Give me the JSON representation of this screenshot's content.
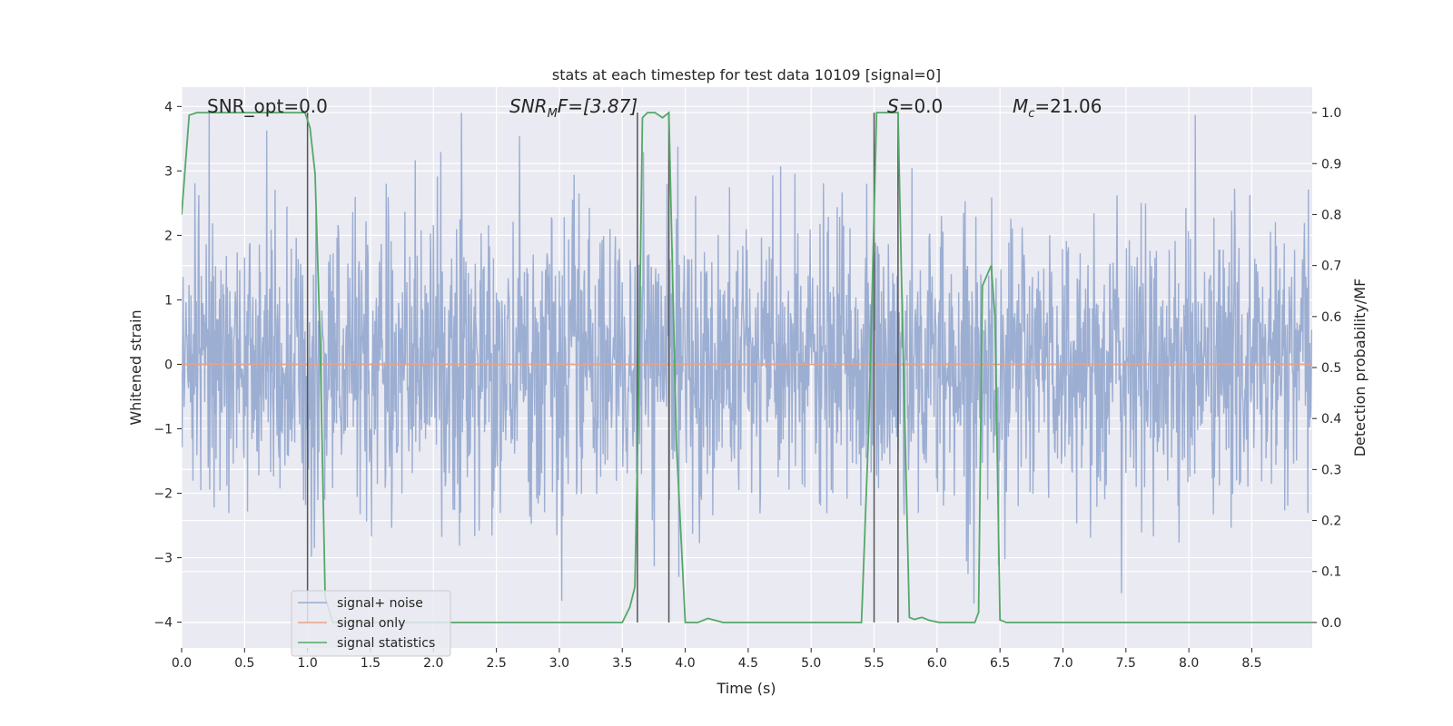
{
  "chart_data": {
    "type": "line",
    "title": "stats at each timestep for test data 10109 [signal=0]",
    "xlabel": "Time (s)",
    "ylabel_left": "Whitened strain",
    "ylabel_right": "Detection probability/MF",
    "xlim": [
      0.0,
      8.98
    ],
    "ylim_left": [
      -4.4,
      4.3
    ],
    "ylim_right": [
      -0.05,
      1.05
    ],
    "x_ticks": [
      "0.0",
      "0.5",
      "1.0",
      "1.5",
      "2.0",
      "2.5",
      "3.0",
      "3.5",
      "4.0",
      "4.5",
      "5.0",
      "5.5",
      "6.0",
      "6.5",
      "7.0",
      "7.5",
      "8.0",
      "8.5"
    ],
    "y_ticks_left": [
      "4",
      "3",
      "2",
      "1",
      "0",
      "−1",
      "−2",
      "−3",
      "−4"
    ],
    "y_ticks_right": [
      "1.0",
      "0.9",
      "0.8",
      "0.7",
      "0.6",
      "0.5",
      "0.4",
      "0.3",
      "0.2",
      "0.1",
      "0.0"
    ],
    "grid": true,
    "legend_position": "lower-left",
    "annotations": {
      "snr_opt": "SNR_opt=0.0",
      "snr_mf_main": "SNR",
      "snr_mf_sub": "M",
      "snr_mf_rest": "F=[3.87]",
      "s_label": "S",
      "s_rest": "=0.0",
      "mc_main": "M",
      "mc_sub": "c",
      "mc_rest": "=21.06"
    },
    "vertical_lines": [
      1.0,
      3.62,
      3.87,
      5.5,
      5.69
    ],
    "noise_series": {
      "name": "signal+ noise",
      "color": "#98abd0",
      "sample_rate_hz": 256,
      "amplitude_sd": 1.0,
      "peak_min": -4.0,
      "peak_max": 3.9
    },
    "signal_only": {
      "name": "signal only",
      "color": "#e5a38a",
      "value": 0.0
    },
    "statistics": {
      "name": "signal statistics",
      "color": "#55a868",
      "x": [
        0.0,
        0.06,
        0.12,
        0.5,
        0.98,
        1.02,
        1.06,
        1.1,
        1.14,
        1.2,
        1.3,
        3.5,
        3.56,
        3.6,
        3.63,
        3.66,
        3.7,
        3.76,
        3.82,
        3.87,
        3.93,
        4.0,
        4.1,
        4.18,
        4.3,
        4.5,
        5.4,
        5.46,
        5.52,
        5.56,
        5.69,
        5.72,
        5.78,
        5.82,
        5.88,
        5.94,
        6.02,
        6.3,
        6.33,
        6.36,
        6.43,
        6.46,
        6.5,
        6.55,
        8.98
      ],
      "y": [
        0.8,
        0.995,
        1.0,
        1.0,
        1.0,
        0.97,
        0.88,
        0.55,
        0.05,
        0.0,
        0.0,
        0.0,
        0.03,
        0.07,
        0.45,
        0.99,
        1.0,
        1.0,
        0.99,
        1.0,
        0.35,
        0.0,
        0.0,
        0.008,
        0.0,
        0.0,
        0.0,
        0.4,
        1.0,
        1.0,
        1.0,
        0.65,
        0.01,
        0.006,
        0.01,
        0.004,
        0.0,
        0.0,
        0.02,
        0.66,
        0.7,
        0.6,
        0.005,
        0.0,
        0.0
      ]
    }
  }
}
